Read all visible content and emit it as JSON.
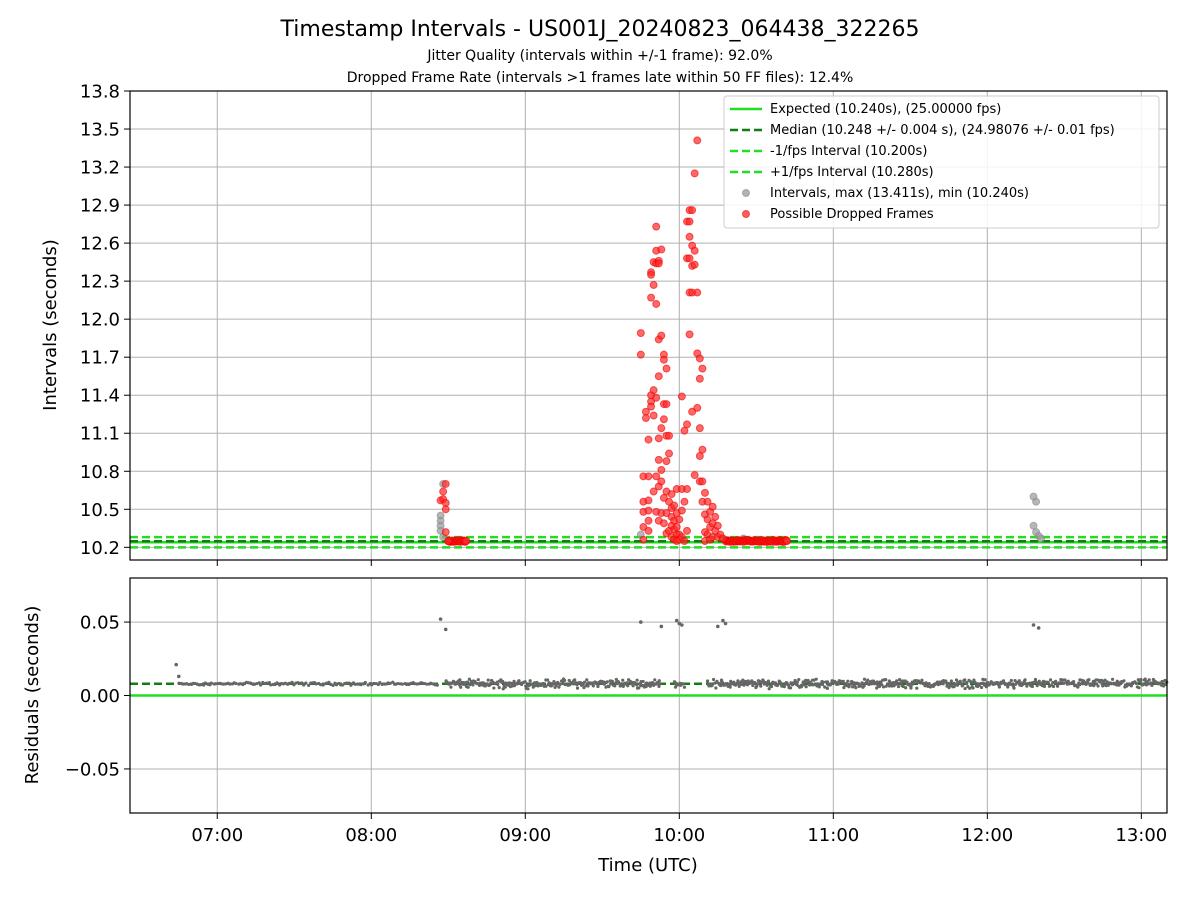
{
  "title": "Timestamp Intervals - US001J_20240823_064438_322265",
  "subtitle_1": "Jitter Quality (intervals within +/-1 frame): 92.0%",
  "subtitle_2": "Dropped Frame Rate (intervals >1 frames late within 50 FF files): 12.4%",
  "colors": {
    "expected": "#22dd22",
    "median": "#157c15",
    "interval_points": "#999999",
    "dropped_points": "#ff2a2a",
    "residual_points": "#666666",
    "grid": "#b0b0b0"
  },
  "chart_data": [
    {
      "type": "scatter",
      "ylabel": "Intervals (seconds)",
      "xlabel": "",
      "x_unit": "time of day (UTC)",
      "xlim": [
        "06:26",
        "13:10"
      ],
      "ylim": [
        10.1,
        13.8
      ],
      "x_ticks": [
        "07:00",
        "08:00",
        "09:00",
        "10:00",
        "11:00",
        "12:00",
        "13:00"
      ],
      "y_ticks": [
        "10.2",
        "10.5",
        "10.8",
        "11.1",
        "11.4",
        "11.7",
        "12.0",
        "12.3",
        "12.6",
        "12.9",
        "13.2",
        "13.5",
        "13.8"
      ],
      "grid": true,
      "legend_position": "top-right",
      "reference_lines": [
        {
          "name": "Expected (10.240s), (25.00000 fps)",
          "y": 10.24,
          "style": "solid"
        },
        {
          "name": "Median (10.248 +/- 0.004 s), (24.98076 +/- 0.01 fps)",
          "y": 10.248,
          "style": "dashed"
        },
        {
          "name": "-1/fps Interval (10.200s)",
          "y": 10.2,
          "style": "dashed"
        },
        {
          "name": "+1/fps Interval (10.280s)",
          "y": 10.28,
          "style": "dashed"
        }
      ],
      "series": [
        {
          "name": "Intervals, max (13.411s), min (10.240s)",
          "points": [
            [
              "08:27",
              10.45
            ],
            [
              "08:27",
              10.41
            ],
            [
              "08:27",
              10.37
            ],
            [
              "08:27",
              10.33
            ],
            [
              "08:28",
              10.7
            ],
            [
              "08:28",
              10.28
            ],
            [
              "09:45",
              10.3
            ],
            [
              "10:25",
              10.27
            ],
            [
              "12:18",
              10.6
            ],
            [
              "12:18",
              10.37
            ],
            [
              "12:19",
              10.56
            ],
            [
              "12:19",
              10.32
            ],
            [
              "12:20",
              10.29
            ],
            [
              "12:21",
              10.27
            ]
          ]
        },
        {
          "name": "Possible Dropped Frames",
          "points": [
            [
              "08:27",
              10.57
            ],
            [
              "08:28",
              10.64
            ],
            [
              "08:28",
              10.58
            ],
            [
              "08:29",
              10.7
            ],
            [
              "08:29",
              10.55
            ],
            [
              "08:29",
              10.5
            ],
            [
              "08:29",
              10.32
            ],
            [
              "08:30",
              10.25
            ],
            [
              "09:45",
              11.89
            ],
            [
              "09:45",
              11.72
            ],
            [
              "09:46",
              10.76
            ],
            [
              "09:46",
              10.56
            ],
            [
              "09:46",
              10.48
            ],
            [
              "09:46",
              10.36
            ],
            [
              "09:46",
              10.26
            ],
            [
              "09:47",
              11.27
            ],
            [
              "09:47",
              11.22
            ],
            [
              "09:48",
              11.05
            ],
            [
              "09:48",
              10.76
            ],
            [
              "09:48",
              10.57
            ],
            [
              "09:48",
              10.49
            ],
            [
              "09:48",
              10.41
            ],
            [
              "09:48",
              10.33
            ],
            [
              "09:49",
              12.37
            ],
            [
              "09:49",
              12.35
            ],
            [
              "09:49",
              12.17
            ],
            [
              "09:49",
              11.4
            ],
            [
              "09:49",
              11.35
            ],
            [
              "09:49",
              11.31
            ],
            [
              "09:50",
              12.45
            ],
            [
              "09:50",
              12.27
            ],
            [
              "09:50",
              11.44
            ],
            [
              "09:50",
              11.24
            ],
            [
              "09:50",
              10.64
            ],
            [
              "09:51",
              12.73
            ],
            [
              "09:51",
              12.54
            ],
            [
              "09:51",
              12.44
            ],
            [
              "09:51",
              12.12
            ],
            [
              "09:51",
              11.38
            ],
            [
              "09:51",
              10.76
            ],
            [
              "09:51",
              10.48
            ],
            [
              "09:52",
              12.46
            ],
            [
              "09:52",
              12.44
            ],
            [
              "09:52",
              11.84
            ],
            [
              "09:52",
              11.55
            ],
            [
              "09:52",
              11.06
            ],
            [
              "09:52",
              10.89
            ],
            [
              "09:52",
              10.68
            ],
            [
              "09:52",
              10.41
            ],
            [
              "09:53",
              12.55
            ],
            [
              "09:53",
              11.87
            ],
            [
              "09:53",
              11.14
            ],
            [
              "09:53",
              10.81
            ],
            [
              "09:53",
              10.72
            ],
            [
              "09:53",
              10.47
            ],
            [
              "09:54",
              11.72
            ],
            [
              "09:54",
              11.68
            ],
            [
              "09:54",
              11.33
            ],
            [
              "09:54",
              11.21
            ],
            [
              "09:54",
              10.59
            ],
            [
              "09:54",
              10.39
            ],
            [
              "09:55",
              11.61
            ],
            [
              "09:55",
              11.33
            ],
            [
              "09:55",
              11.08
            ],
            [
              "09:55",
              10.88
            ],
            [
              "09:55",
              10.64
            ],
            [
              "09:55",
              10.47
            ],
            [
              "09:55",
              10.31
            ],
            [
              "09:56",
              11.08
            ],
            [
              "09:56",
              10.94
            ],
            [
              "09:56",
              10.56
            ],
            [
              "09:56",
              10.33
            ],
            [
              "09:57",
              10.62
            ],
            [
              "09:57",
              10.51
            ],
            [
              "09:57",
              10.44
            ],
            [
              "09:57",
              10.37
            ],
            [
              "09:57",
              10.28
            ],
            [
              "09:58",
              10.53
            ],
            [
              "09:58",
              10.41
            ],
            [
              "09:58",
              10.34
            ],
            [
              "09:58",
              10.26
            ],
            [
              "09:59",
              10.66
            ],
            [
              "09:59",
              10.47
            ],
            [
              "09:59",
              10.36
            ],
            [
              "09:59",
              10.3
            ],
            [
              "09:59",
              10.25
            ],
            [
              "10:00",
              10.42
            ],
            [
              "10:00",
              10.3
            ],
            [
              "10:00",
              10.26
            ],
            [
              "10:01",
              11.39
            ],
            [
              "10:01",
              10.66
            ],
            [
              "10:01",
              10.49
            ],
            [
              "10:01",
              10.28
            ],
            [
              "10:02",
              11.12
            ],
            [
              "10:02",
              10.56
            ],
            [
              "10:02",
              10.25
            ],
            [
              "10:03",
              12.77
            ],
            [
              "10:03",
              12.48
            ],
            [
              "10:03",
              11.17
            ],
            [
              "10:03",
              10.66
            ],
            [
              "10:03",
              10.33
            ],
            [
              "10:04",
              12.86
            ],
            [
              "10:04",
              12.77
            ],
            [
              "10:04",
              12.65
            ],
            [
              "10:04",
              12.48
            ],
            [
              "10:04",
              12.21
            ],
            [
              "10:04",
              11.88
            ],
            [
              "10:05",
              12.86
            ],
            [
              "10:05",
              12.58
            ],
            [
              "10:05",
              12.42
            ],
            [
              "10:05",
              12.21
            ],
            [
              "10:05",
              11.27
            ],
            [
              "10:06",
              13.15
            ],
            [
              "10:06",
              12.54
            ],
            [
              "10:06",
              12.43
            ],
            [
              "10:06",
              10.77
            ],
            [
              "10:07",
              13.41
            ],
            [
              "10:07",
              12.21
            ],
            [
              "10:07",
              11.73
            ],
            [
              "10:07",
              11.3
            ],
            [
              "10:08",
              11.69
            ],
            [
              "10:08",
              11.53
            ],
            [
              "10:08",
              11.14
            ],
            [
              "10:08",
              10.92
            ],
            [
              "10:08",
              10.72
            ],
            [
              "10:09",
              11.61
            ],
            [
              "10:09",
              10.97
            ],
            [
              "10:09",
              10.72
            ],
            [
              "10:09",
              10.56
            ],
            [
              "10:10",
              10.63
            ],
            [
              "10:10",
              10.46
            ],
            [
              "10:10",
              10.32
            ],
            [
              "10:10",
              10.25
            ],
            [
              "10:11",
              10.56
            ],
            [
              "10:11",
              10.42
            ],
            [
              "10:11",
              10.3
            ],
            [
              "10:12",
              10.48
            ],
            [
              "10:12",
              10.36
            ],
            [
              "10:12",
              10.26
            ],
            [
              "10:13",
              10.52
            ],
            [
              "10:13",
              10.39
            ],
            [
              "10:13",
              10.28
            ],
            [
              "10:14",
              10.44
            ],
            [
              "10:14",
              10.33
            ],
            [
              "10:15",
              10.37
            ],
            [
              "10:15",
              10.28
            ],
            [
              "10:16",
              10.3
            ],
            [
              "10:17",
              10.27
            ]
          ]
        }
      ],
      "dense_bands": [
        {
          "series": "Possible Dropped Frames",
          "x_range": [
            "08:30",
            "08:37"
          ],
          "y": 10.25
        },
        {
          "series": "Possible Dropped Frames",
          "x_range": [
            "10:18",
            "10:42"
          ],
          "y": 10.25
        }
      ]
    },
    {
      "type": "scatter",
      "ylabel": "Residuals (seconds)",
      "xlabel": "Time (UTC)",
      "xlim": [
        "06:26",
        "13:10"
      ],
      "ylim": [
        -0.08,
        0.08
      ],
      "x_ticks": [
        "07:00",
        "08:00",
        "09:00",
        "10:00",
        "11:00",
        "12:00",
        "13:00"
      ],
      "y_ticks": [
        "−0.05",
        "0.00",
        "0.05"
      ],
      "grid": true,
      "reference_lines": [
        {
          "name": "Expected",
          "y": 0.0,
          "style": "solid"
        },
        {
          "name": "Median",
          "y": 0.008,
          "style": "dashed"
        }
      ],
      "outliers": [
        [
          "06:44",
          0.021
        ],
        [
          "06:45",
          0.013
        ],
        [
          "08:27",
          0.052
        ],
        [
          "08:29",
          0.045
        ],
        [
          "09:45",
          0.05
        ],
        [
          "09:53",
          0.047
        ],
        [
          "09:59",
          0.051
        ],
        [
          "10:00",
          0.049
        ],
        [
          "10:01",
          0.048
        ],
        [
          "10:15",
          0.047
        ],
        [
          "10:17",
          0.051
        ],
        [
          "10:18",
          0.049
        ],
        [
          "12:18",
          0.048
        ],
        [
          "12:20",
          0.046
        ]
      ],
      "bulk": [
        {
          "x_range": [
            "06:45",
            "08:26"
          ],
          "center": 0.008,
          "spread": 0.0012
        },
        {
          "x_range": [
            "08:29",
            "09:53"
          ],
          "center": 0.008,
          "spread": 0.0035
        },
        {
          "x_range": [
            "09:58",
            "10:02"
          ],
          "center": 0.008,
          "spread": 0.003
        },
        {
          "x_range": [
            "10:11",
            "13:10"
          ],
          "center": 0.008,
          "spread": 0.0035
        }
      ]
    }
  ]
}
